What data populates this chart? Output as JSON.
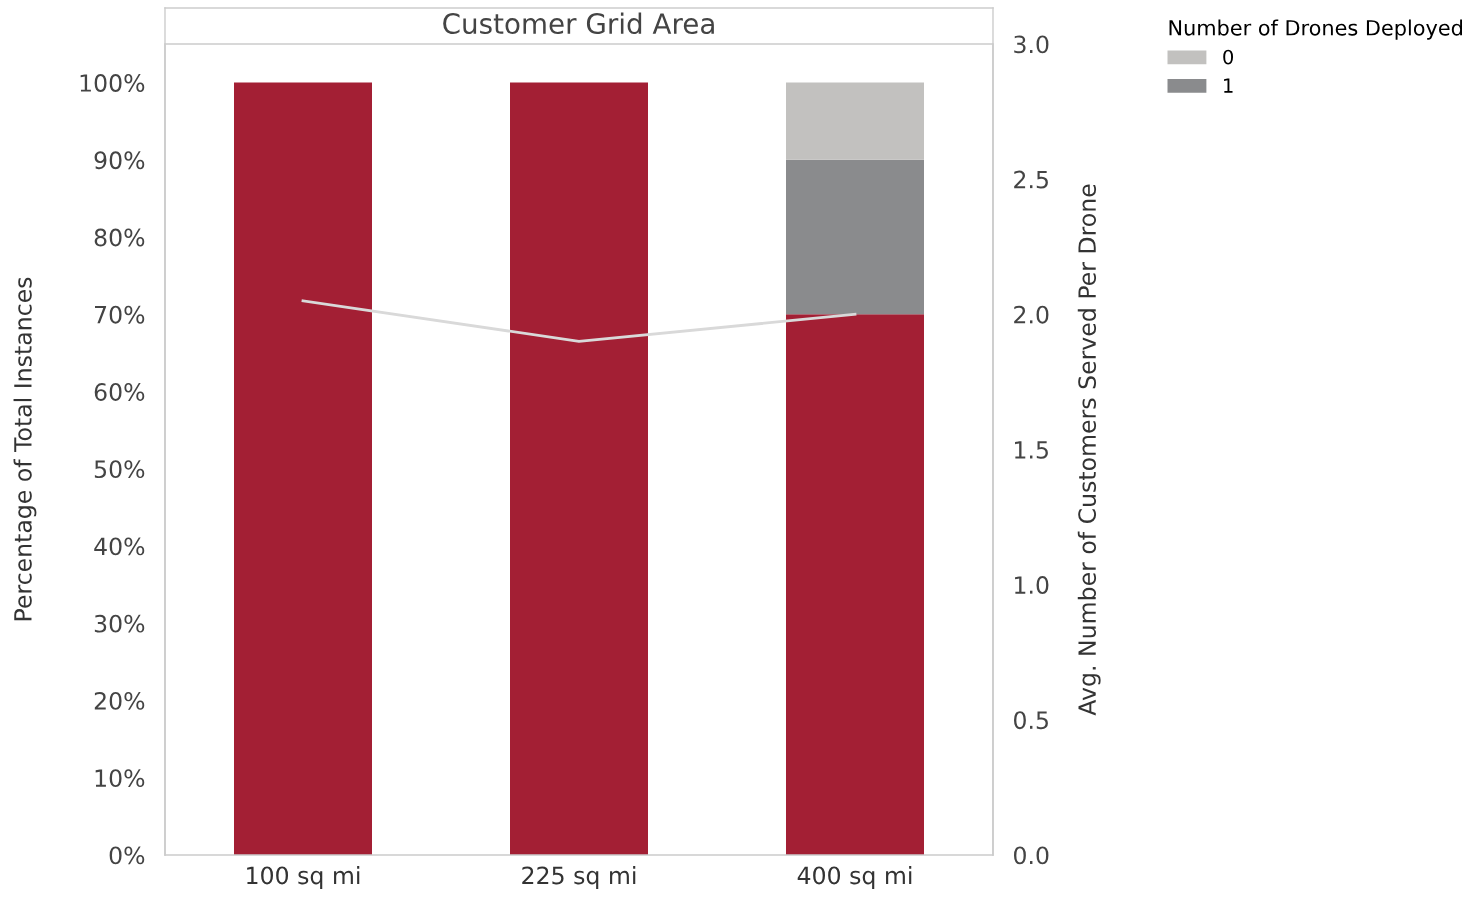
{
  "chart_data": {
    "type": "bar",
    "title": "Customer Grid Area",
    "ylabel": "Percentage of Total Instances",
    "y2label": "Avg. Number of Customers Served Per Drone",
    "legend_title": "Number of Drones Deployed",
    "categories": [
      "100 sq mi",
      "225 sq mi",
      "400 sq mi"
    ],
    "stacked": true,
    "grid": false,
    "legend": "top right",
    "series": [
      {
        "color": "#a31f34",
        "values": [
          100,
          100,
          70
        ]
      },
      {
        "name": "1",
        "color": "#8a8b8d",
        "values": [
          0,
          0,
          20
        ]
      },
      {
        "name": "0",
        "color": "#c2c1bf",
        "values": [
          0,
          0,
          10
        ]
      },
      {
        "type": "line",
        "axis": "y2",
        "color": "#d9d9d9",
        "values": [
          2.05,
          1.9,
          2.0
        ]
      }
    ],
    "ylim": [
      0,
      105
    ],
    "yticks": [
      {
        "value": 0,
        "label": "0%"
      },
      {
        "value": 10,
        "label": "10%"
      },
      {
        "value": 20,
        "label": "20%"
      },
      {
        "value": 30,
        "label": "30%"
      },
      {
        "value": 40,
        "label": "40%"
      },
      {
        "value": 50,
        "label": "50%"
      },
      {
        "value": 60,
        "label": "60%"
      },
      {
        "value": 70,
        "label": "70%"
      },
      {
        "value": 80,
        "label": "80%"
      },
      {
        "value": 90,
        "label": "90%"
      },
      {
        "value": 100,
        "label": "100%"
      }
    ],
    "y2lim": [
      0,
      3.0
    ],
    "y2ticks": [
      {
        "value": 0,
        "label": "0.0"
      },
      {
        "value": 0.5,
        "label": "0.5"
      },
      {
        "value": 1,
        "label": "1.0"
      },
      {
        "value": 1.5,
        "label": "1.5"
      },
      {
        "value": 2,
        "label": "2.0"
      },
      {
        "value": 2.5,
        "label": "2.5"
      },
      {
        "value": 3,
        "label": "3.0"
      }
    ]
  }
}
